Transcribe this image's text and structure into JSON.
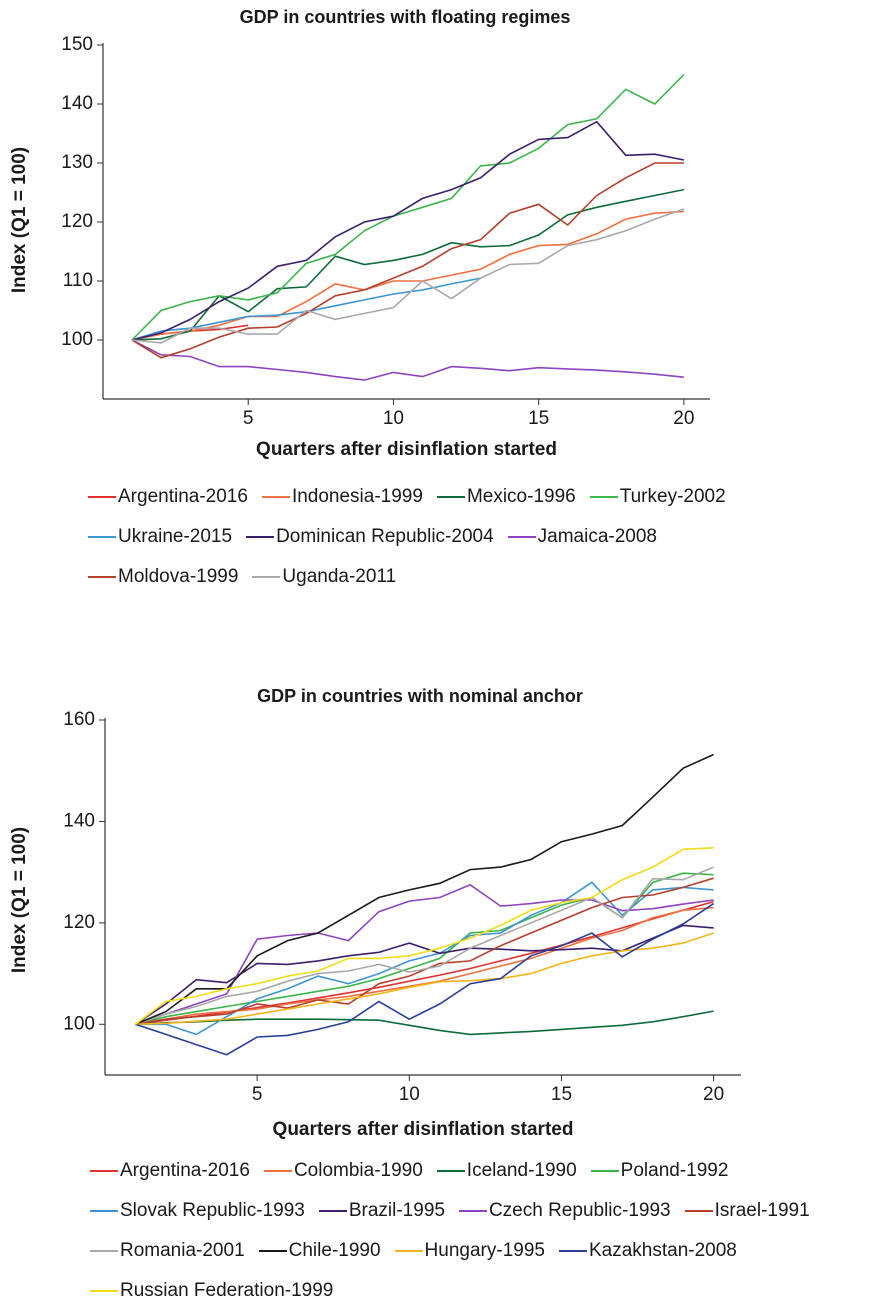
{
  "chart_data": [
    {
      "type": "line",
      "title": "GDP in countries with floating regimes",
      "xlabel": "Quarters after disinflation started",
      "ylabel": "Index (Q1 = 100)",
      "x": [
        1,
        2,
        3,
        4,
        5,
        6,
        7,
        8,
        9,
        10,
        11,
        12,
        13,
        14,
        15,
        16,
        17,
        18,
        19,
        20
      ],
      "xlim": [
        0,
        20.9
      ],
      "xticks": [
        5,
        10,
        15,
        20
      ],
      "ylim": [
        90,
        150
      ],
      "yticks": [
        100,
        110,
        120,
        130,
        140,
        150
      ],
      "grid": false,
      "legend": "bottom",
      "series": [
        {
          "name": "Argentina-2016",
          "color": "#e03030",
          "values": [
            100,
            101,
            101.5,
            101.8,
            102.5,
            null,
            null,
            null,
            null,
            null,
            null,
            null,
            null,
            null,
            null,
            null,
            null,
            null,
            null,
            null
          ]
        },
        {
          "name": "Indonesia-1999",
          "color": "#f07040",
          "values": [
            100,
            101,
            101.5,
            102.5,
            104,
            104,
            106.5,
            109.5,
            108.5,
            110,
            110,
            111,
            112,
            114.5,
            116,
            116.2,
            118,
            120.5,
            121.5,
            121.8
          ]
        },
        {
          "name": "Mexico-1996",
          "color": "#0e6b3a",
          "values": [
            100,
            100.2,
            101.5,
            107.5,
            104.8,
            108.7,
            109,
            114.2,
            112.8,
            113.5,
            114.5,
            116.5,
            115.8,
            116,
            117.8,
            121.2,
            122.5,
            123.5,
            124.5,
            125.5
          ]
        },
        {
          "name": "Turkey-2002",
          "color": "#3cb54a",
          "values": [
            100,
            105,
            106.5,
            107.5,
            106.8,
            108,
            113,
            114.5,
            118.5,
            121,
            122.5,
            124,
            129.5,
            130,
            132.5,
            136.5,
            137.5,
            142.5,
            140,
            145
          ]
        },
        {
          "name": "Ukraine-2015",
          "color": "#3d95d4",
          "values": [
            100,
            101.5,
            102,
            103,
            104,
            104.2,
            104.8,
            105.8,
            106.8,
            107.8,
            108.5,
            109.5,
            110.5,
            null,
            null,
            null,
            null,
            null,
            null,
            null
          ]
        },
        {
          "name": "Dominican Republic-2004",
          "color": "#3b1f6e",
          "values": [
            100,
            101.2,
            103.5,
            106.5,
            108.8,
            112.5,
            113.5,
            117.5,
            120,
            121,
            124,
            125.5,
            127.5,
            131.5,
            134,
            134.3,
            137,
            131.3,
            131.5,
            130.5
          ]
        },
        {
          "name": "Jamaica-2008",
          "color": "#8e44c0",
          "values": [
            100,
            97.5,
            97.2,
            95.5,
            95.5,
            95,
            94.5,
            93.8,
            93.2,
            94.5,
            93.8,
            95.5,
            95.2,
            94.8,
            95.3,
            95.1,
            94.9,
            94.6,
            94.2,
            93.7
          ]
        },
        {
          "name": "Moldova-1999",
          "color": "#b5402a",
          "values": [
            100,
            97,
            98.5,
            100.5,
            102,
            102.2,
            104.5,
            107.5,
            108.5,
            110.5,
            112.5,
            115.5,
            117,
            121.5,
            123,
            119.5,
            124.5,
            127.5,
            130,
            130
          ]
        },
        {
          "name": "Uganda-2011",
          "color": "#a9a9a9",
          "values": [
            100,
            99.5,
            102,
            102,
            101,
            101,
            105,
            103.5,
            104.5,
            105.5,
            110,
            107,
            110.5,
            112.8,
            113,
            116,
            117,
            118.5,
            120.5,
            122.2
          ]
        }
      ]
    },
    {
      "type": "line",
      "title": "GDP in countries with nominal anchor",
      "xlabel": "Quarters after disinflation started",
      "ylabel": "Index (Q1 = 100)",
      "x": [
        1,
        2,
        3,
        4,
        5,
        6,
        7,
        8,
        9,
        10,
        11,
        12,
        13,
        14,
        15,
        16,
        17,
        18,
        19,
        20
      ],
      "xlim": [
        0,
        20.9
      ],
      "xticks": [
        5,
        10,
        15,
        20
      ],
      "ylim": [
        90,
        160
      ],
      "yticks": [
        100,
        120,
        140,
        160
      ],
      "grid": false,
      "legend": "bottom",
      "series": [
        {
          "name": "Argentina-2016",
          "color": "#e03030",
          "values": [
            100,
            100.8,
            101.6,
            102.4,
            103.3,
            104.2,
            105.2,
            106.2,
            107.3,
            108.5,
            109.7,
            111,
            112.5,
            114,
            115.6,
            117.3,
            119,
            120.8,
            122.5,
            124.2
          ]
        },
        {
          "name": "Colombia-1990",
          "color": "#f07040",
          "values": [
            100,
            101,
            102,
            102.5,
            103,
            104,
            104.8,
            105.5,
            106.5,
            107.5,
            108.5,
            110,
            111.5,
            113,
            115,
            117,
            118.5,
            121,
            122.5,
            123
          ]
        },
        {
          "name": "Iceland-1990",
          "color": "#0e6b3a",
          "values": [
            100,
            100.3,
            100.5,
            100.8,
            101,
            101,
            101,
            100.9,
            100.8,
            99.8,
            98.8,
            98,
            98.3,
            98.6,
            99,
            99.4,
            99.8,
            100.5,
            101.5,
            102.6
          ]
        },
        {
          "name": "Poland-1992",
          "color": "#3cb54a",
          "values": [
            100,
            101.5,
            102.5,
            103.5,
            104.5,
            105.5,
            106.5,
            107.5,
            109,
            111,
            113,
            118,
            118.5,
            121,
            123.5,
            125,
            121,
            128,
            129.8,
            129.5
          ]
        },
        {
          "name": "Slovak Republic-1993",
          "color": "#3d95d4",
          "values": [
            100,
            100,
            98,
            101.5,
            105,
            107,
            109.5,
            108,
            110,
            112.5,
            114,
            117.5,
            118,
            121.5,
            124,
            128,
            121.5,
            126.5,
            127,
            126.5
          ]
        },
        {
          "name": "Brazil-1995",
          "color": "#3b1f6e",
          "values": [
            100,
            104,
            108.8,
            108.2,
            112,
            111.8,
            112.5,
            113.5,
            114.2,
            116,
            114,
            115,
            114.8,
            114.5,
            114.7,
            115,
            114.5,
            117,
            119.5,
            119
          ]
        },
        {
          "name": "Czech Republic-1993",
          "color": "#8e44c0",
          "values": [
            100,
            102,
            104,
            106,
            116.8,
            117.5,
            118,
            116.5,
            122.2,
            124.3,
            125,
            127.5,
            123.3,
            123.8,
            124.5,
            124.5,
            122.4,
            122.8,
            123.7,
            124.5
          ]
        },
        {
          "name": "Israel-1991",
          "color": "#b5402a",
          "values": [
            100,
            101,
            101.5,
            102,
            104,
            103.2,
            104.8,
            104,
            108,
            109.5,
            112,
            112.5,
            115.5,
            118,
            120.5,
            123,
            125,
            125.5,
            127,
            128.8
          ]
        },
        {
          "name": "Romania-2001",
          "color": "#a9a9a9",
          "values": [
            100,
            102,
            103.5,
            105.5,
            106.5,
            108.5,
            110,
            110.5,
            111.8,
            110.3,
            111.5,
            115,
            117.5,
            120,
            122.5,
            125,
            121,
            128.7,
            128.5,
            131
          ]
        },
        {
          "name": "Chile-1990",
          "color": "#1a1a1a",
          "values": [
            100,
            102.5,
            107,
            107,
            113.5,
            116.5,
            118,
            121.5,
            125,
            126.5,
            127.8,
            130.5,
            131,
            132.5,
            136,
            137.5,
            139.2,
            144.8,
            150.5,
            153.2
          ]
        },
        {
          "name": "Hungary-1995",
          "color": "#f4b41a",
          "values": [
            100,
            100.2,
            100.6,
            101,
            102,
            103,
            104,
            105,
            106,
            107.3,
            108.4,
            108.6,
            109,
            110,
            112,
            113.5,
            114.5,
            115,
            116,
            118
          ]
        },
        {
          "name": "Kazakhstan-2008",
          "color": "#2a3f9a",
          "values": [
            100,
            98,
            96,
            94,
            97.5,
            97.8,
            99,
            100.5,
            104.5,
            101,
            104,
            108,
            109,
            113.5,
            115.5,
            118,
            113.3,
            116.8,
            119.8,
            123.8
          ]
        },
        {
          "name": "Russian Federation-1999",
          "color": "#f1dc16",
          "values": [
            100,
            104.5,
            105.5,
            107,
            108,
            109.5,
            110.5,
            113,
            113,
            113.5,
            115,
            117,
            119.5,
            122.5,
            124,
            125,
            128.5,
            131,
            134.5,
            134.8
          ]
        }
      ]
    }
  ]
}
